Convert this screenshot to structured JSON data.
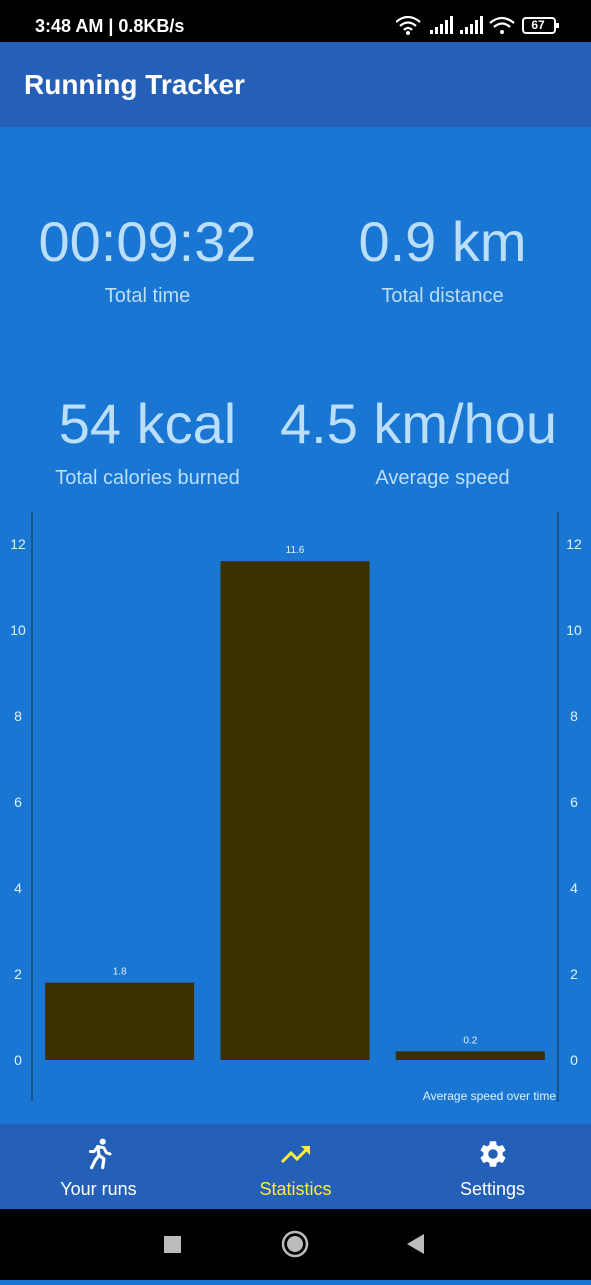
{
  "status_bar": {
    "time": "3:48 AM | 0.8KB/s",
    "battery": "67"
  },
  "app_bar": {
    "title": "Running Tracker"
  },
  "stats": {
    "total_time": {
      "value": "00:09:32",
      "label": "Total time"
    },
    "total_distance": {
      "value": "0.9 km",
      "label": "Total distance"
    },
    "total_calories": {
      "value": "54 kcal",
      "label": "Total calories burned"
    },
    "average_speed": {
      "value": "4.5 km/hou",
      "label": "Average speed"
    }
  },
  "chart_data": {
    "type": "bar",
    "values": [
      1.8,
      11.6,
      0.2
    ],
    "value_labels": [
      "1.8",
      "11.6",
      "0.2"
    ],
    "description": "Average speed over time",
    "ylim": [
      0,
      12
    ],
    "y_ticks": [
      "0",
      "2",
      "4",
      "6",
      "8",
      "10",
      "12"
    ],
    "bar_color": "#3B3000",
    "grid": false,
    "left_axis": true,
    "right_axis": true
  },
  "bottom_nav": {
    "items": [
      {
        "label": "Your runs",
        "icon": "running-icon",
        "active": false
      },
      {
        "label": "Statistics",
        "icon": "trending-up-icon",
        "active": true
      },
      {
        "label": "Settings",
        "icon": "gear-icon",
        "active": false
      }
    ]
  },
  "colors": {
    "background": "#1976D2",
    "app_bar": "#2460B8",
    "stat_text": "#BBDEFB",
    "active_nav": "#FFEB3B"
  }
}
